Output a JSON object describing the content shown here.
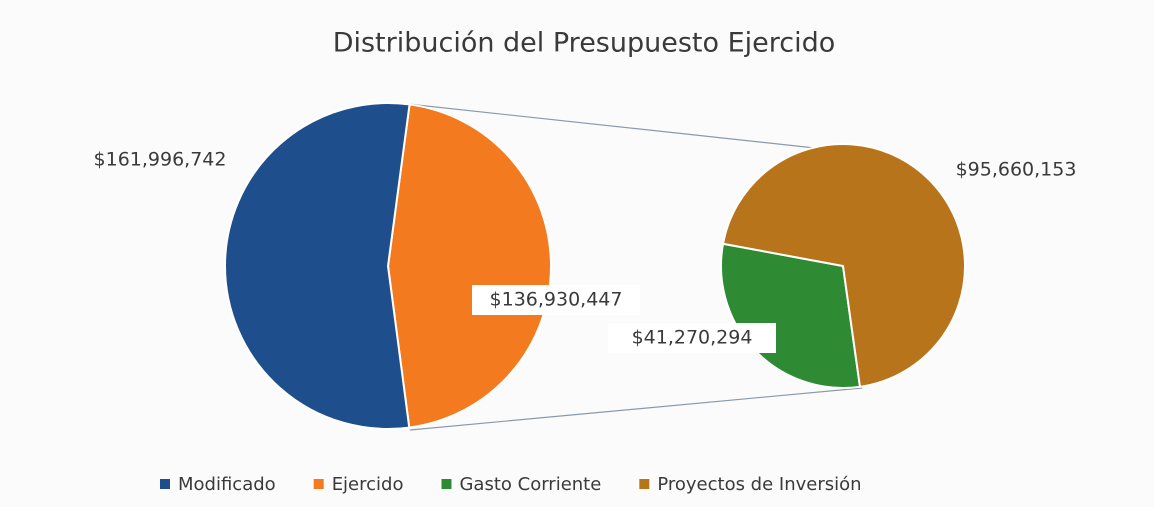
{
  "chart_data": {
    "type": "pie",
    "title": "Distribución del Presupuesto Ejercido",
    "pies": [
      {
        "categories": [
          "Modificado",
          "Ejercido"
        ],
        "values": [
          161996742,
          136930447
        ],
        "value_labels": [
          "$161,996,742",
          "$136,930,447"
        ],
        "colors": [
          "#1f4e8c",
          "#f47a20"
        ]
      },
      {
        "categories": [
          "Gasto Corriente",
          "Proyectos de Inversión"
        ],
        "values": [
          41270294,
          95660153
        ],
        "value_labels": [
          "$41,270,294",
          "$95,660,153"
        ],
        "colors": [
          "#2e8b34",
          "#b8741a"
        ]
      }
    ]
  }
}
